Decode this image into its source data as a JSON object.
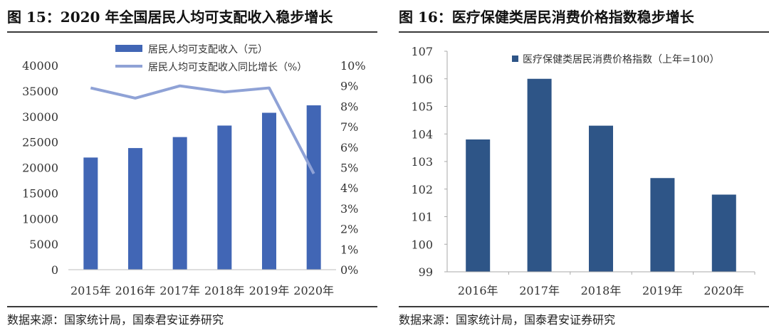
{
  "left": {
    "title": "图 15：2020 年全国居民人均可支配收入稳步增长",
    "source": "数据来源：国家统计局，国泰君安证券研究"
  },
  "right": {
    "title": "图 16：医疗保健类居民消费价格指数稳步增长",
    "source": "数据来源：国家统计局，国泰君安证券研究"
  },
  "chart_data": [
    {
      "type": "bar",
      "title": "2020 年全国居民人均可支配收入稳步增长",
      "categories": [
        "2015年",
        "2016年",
        "2017年",
        "2018年",
        "2019年",
        "2020年"
      ],
      "series": [
        {
          "name": "居民人均可支配收入（元）",
          "type": "bar",
          "axis": "left",
          "values": [
            21966,
            23821,
            25974,
            28228,
            30733,
            32189
          ],
          "color": "#4166b5"
        },
        {
          "name": "居民人均可支配收入同比增长（%）",
          "type": "line",
          "axis": "right",
          "values": [
            8.9,
            8.4,
            9.0,
            8.7,
            8.9,
            4.7
          ],
          "color": "#8fa2d6"
        }
      ],
      "left_axis": {
        "ylim": [
          0,
          40000
        ],
        "ticks": [
          "0",
          "5000",
          "10000",
          "15000",
          "20000",
          "25000",
          "30000",
          "35000",
          "40000"
        ]
      },
      "right_axis": {
        "ylim": [
          0,
          10
        ],
        "ticks": [
          "0%",
          "1%",
          "2%",
          "3%",
          "4%",
          "5%",
          "6%",
          "7%",
          "8%",
          "9%",
          "10%"
        ]
      },
      "legend_position": "top-center",
      "grid": false
    },
    {
      "type": "bar",
      "title": "医疗保健类居民消费价格指数稳步增长",
      "categories": [
        "2016年",
        "2017年",
        "2018年",
        "2019年",
        "2020年"
      ],
      "series": [
        {
          "name": "医疗保健类居民消费价格指数（上年=100）",
          "values": [
            103.8,
            106.0,
            104.3,
            102.4,
            101.8
          ],
          "color": "#2e5587"
        }
      ],
      "left_axis": {
        "ylim": [
          99,
          107
        ],
        "ticks": [
          "99",
          "100",
          "101",
          "102",
          "103",
          "104",
          "105",
          "106",
          "107"
        ]
      },
      "legend_position": "top-right",
      "grid": false
    }
  ]
}
